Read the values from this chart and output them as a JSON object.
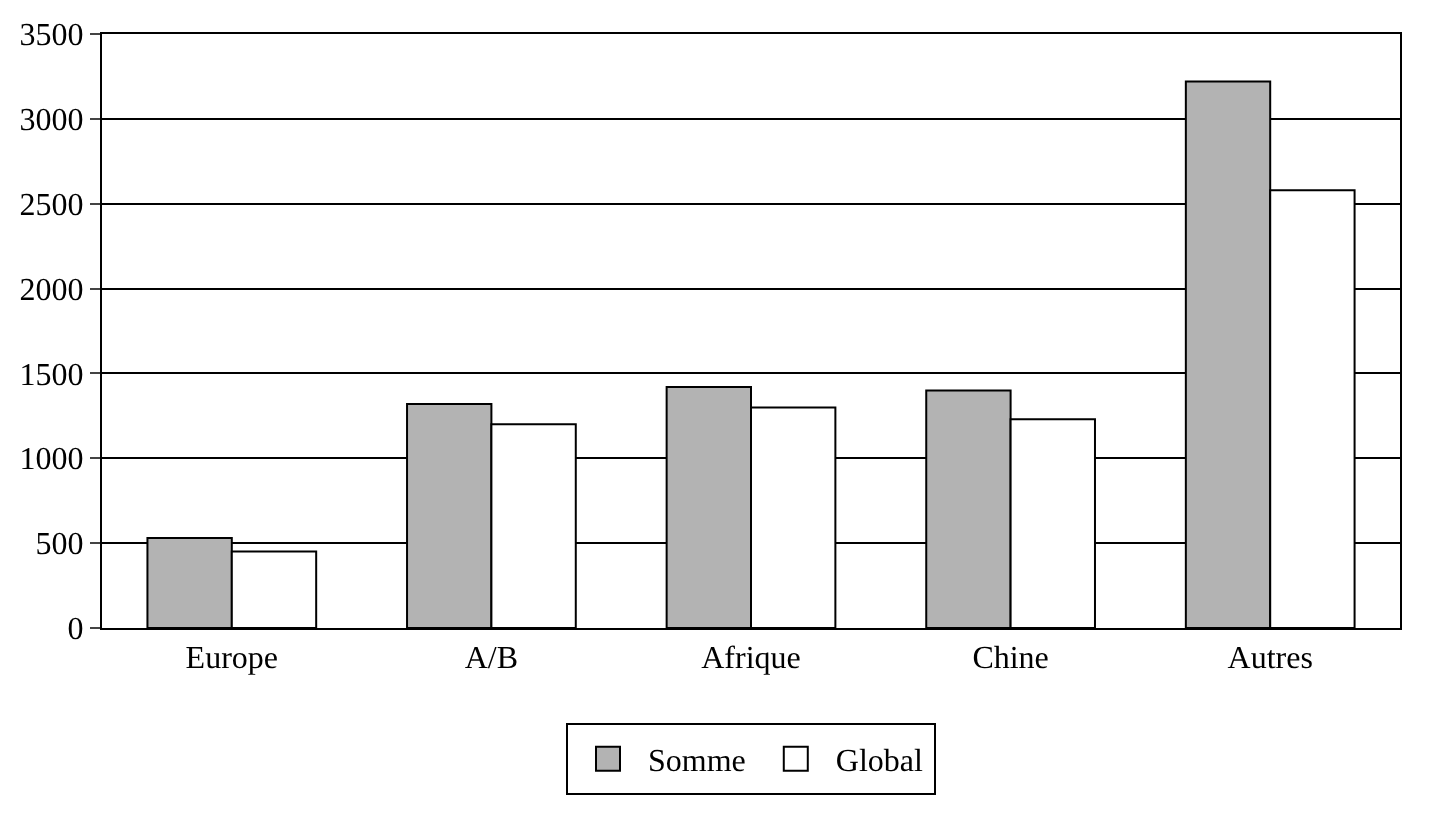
{
  "chart_data": {
    "type": "bar",
    "categories": [
      "Europe",
      "A/B",
      "Afrique",
      "Chine",
      "Autres"
    ],
    "series": [
      {
        "name": "Somme",
        "color": "#b3b3b3",
        "values": [
          530,
          1320,
          1420,
          1400,
          3220
        ]
      },
      {
        "name": "Global",
        "color": "#ffffff",
        "values": [
          450,
          1200,
          1300,
          1230,
          2580
        ]
      }
    ],
    "ylim": [
      0,
      3500
    ],
    "yticks": [
      0,
      500,
      1000,
      1500,
      2000,
      2500,
      3000,
      3500
    ],
    "grid": "y",
    "legend": "bottom"
  }
}
